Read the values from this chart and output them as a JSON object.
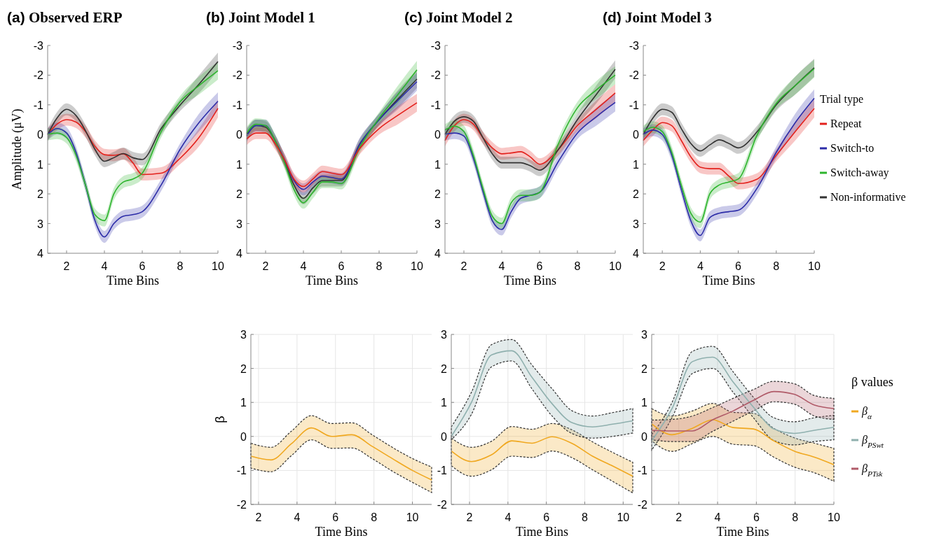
{
  "chart_data": [
    {
      "type": "line",
      "title": "(a) Observed ERP",
      "xlabel": "Time Bins",
      "ylabel": "Amplitude (μV)",
      "x": [
        1,
        1.5,
        2,
        2.5,
        3,
        3.5,
        4,
        4.5,
        5,
        5.5,
        6,
        7,
        8,
        9,
        10
      ],
      "xlim": [
        1,
        10
      ],
      "ylim": [
        4,
        -3
      ],
      "xticks": [
        2,
        4,
        6,
        8,
        10
      ],
      "yticks": [
        -3,
        -2,
        -1,
        0,
        1,
        2,
        3,
        4
      ],
      "grid": false,
      "legend": false,
      "series": [
        {
          "color": "#e3211c",
          "values": [
            0,
            -0.35,
            -0.5,
            -0.42,
            -0.1,
            0.4,
            0.68,
            0.7,
            0.65,
            0.95,
            1.35,
            1.3,
            0.8,
            0.1,
            -0.88
          ],
          "lower": [
            -0.2,
            -0.55,
            -0.7,
            -0.62,
            -0.3,
            0.2,
            0.48,
            0.5,
            0.45,
            0.75,
            1.15,
            1.1,
            0.6,
            -0.2,
            -1.18
          ],
          "upper": [
            0.2,
            -0.15,
            -0.3,
            -0.22,
            0.1,
            0.6,
            0.88,
            0.9,
            0.85,
            1.15,
            1.55,
            1.5,
            1.0,
            0.4,
            -0.58
          ]
        },
        {
          "color": "#333333",
          "values": [
            0,
            -0.56,
            -0.85,
            -0.64,
            -0.13,
            0.5,
            0.9,
            0.78,
            0.64,
            0.78,
            0.84,
            -0.2,
            -0.99,
            -1.7,
            -2.46
          ],
          "lower": [
            -0.2,
            -0.76,
            -1.05,
            -0.84,
            -0.33,
            0.3,
            0.7,
            0.58,
            0.44,
            0.58,
            0.64,
            -0.4,
            -1.19,
            -2.0,
            -2.76
          ],
          "upper": [
            0.2,
            -0.36,
            -0.65,
            -0.44,
            0.07,
            0.7,
            1.1,
            0.98,
            0.84,
            0.98,
            1.04,
            0,
            -0.79,
            -1.4,
            -2.16
          ]
        },
        {
          "color": "#2c2ca8",
          "values": [
            0,
            -0.2,
            -0.05,
            0.6,
            1.7,
            2.9,
            3.45,
            3.0,
            2.75,
            2.7,
            2.6,
            1.7,
            0.5,
            -0.4,
            -1.12
          ],
          "lower": [
            -0.2,
            -0.4,
            -0.25,
            0.4,
            1.5,
            2.7,
            3.25,
            2.8,
            2.55,
            2.5,
            2.4,
            1.5,
            0.3,
            -0.7,
            -1.42
          ],
          "upper": [
            0.2,
            0,
            0.15,
            0.8,
            1.9,
            3.1,
            3.65,
            3.2,
            2.95,
            2.9,
            2.8,
            1.9,
            0.7,
            -0.1,
            -0.82
          ]
        },
        {
          "color": "#2db52d",
          "values": [
            0,
            -0.05,
            0.1,
            0.7,
            1.7,
            2.7,
            2.9,
            2.0,
            1.6,
            1.5,
            1.3,
            -0.1,
            -1.1,
            -1.65,
            -2.15
          ],
          "lower": [
            -0.2,
            -0.25,
            -0.1,
            0.5,
            1.5,
            2.5,
            2.7,
            1.8,
            1.4,
            1.3,
            1.1,
            -0.3,
            -1.3,
            -1.95,
            -2.45
          ],
          "upper": [
            0.2,
            0.15,
            0.3,
            0.9,
            1.9,
            2.9,
            3.1,
            2.2,
            1.8,
            1.7,
            1.5,
            0.1,
            -0.9,
            -1.35,
            -1.85
          ]
        }
      ]
    },
    {
      "type": "line",
      "title": "(b) Joint Model 1",
      "xlabel": "Time Bins",
      "x": [
        1,
        1.5,
        2,
        2.5,
        3,
        3.5,
        4,
        4.5,
        5,
        5.5,
        6,
        7,
        8,
        9,
        10
      ],
      "xlim": [
        1,
        10
      ],
      "ylim": [
        4,
        -3
      ],
      "xticks": [
        2,
        4,
        6,
        8,
        10
      ],
      "yticks": [
        -3,
        -2,
        -1,
        0,
        1,
        2,
        3,
        4
      ],
      "grid": false,
      "legend": false,
      "series": [
        {
          "color": "#333333",
          "values": [
            0,
            -0.3,
            -0.25,
            0.2,
            0.9,
            1.7,
            2.15,
            1.8,
            1.55,
            1.55,
            1.55,
            0.3,
            -0.5,
            -1.2,
            -1.87
          ],
          "lower": [
            -0.2,
            -0.5,
            -0.45,
            0,
            0.7,
            1.5,
            1.95,
            1.6,
            1.35,
            1.35,
            1.35,
            0.1,
            -0.7,
            -1.5,
            -2.17
          ],
          "upper": [
            0.2,
            -0.1,
            -0.05,
            0.4,
            1.1,
            1.9,
            2.35,
            2.0,
            1.75,
            1.75,
            1.75,
            0.5,
            -0.3,
            -0.9,
            -1.57
          ]
        },
        {
          "color": "#2c2ca8",
          "values": [
            0.05,
            -0.3,
            -0.3,
            0.2,
            0.85,
            1.55,
            1.85,
            1.6,
            1.4,
            1.45,
            1.5,
            0.3,
            -0.5,
            -1.15,
            -1.78
          ],
          "lower": [
            -0.15,
            -0.5,
            -0.5,
            0,
            0.65,
            1.35,
            1.65,
            1.4,
            1.2,
            1.25,
            1.3,
            0.1,
            -0.7,
            -1.45,
            -2.08
          ],
          "upper": [
            0.25,
            -0.1,
            -0.1,
            0.4,
            1.05,
            1.75,
            2.05,
            1.8,
            1.6,
            1.65,
            1.7,
            0.5,
            -0.3,
            -0.85,
            -1.48
          ]
        },
        {
          "color": "#2db52d",
          "values": [
            -0.05,
            -0.35,
            -0.3,
            0.2,
            0.95,
            1.85,
            2.3,
            1.95,
            1.6,
            1.6,
            1.65,
            0.4,
            -0.55,
            -1.35,
            -2.18
          ],
          "lower": [
            -0.25,
            -0.55,
            -0.5,
            0,
            0.75,
            1.65,
            2.1,
            1.75,
            1.4,
            1.4,
            1.45,
            0.2,
            -0.75,
            -1.65,
            -2.48
          ],
          "upper": [
            0.15,
            -0.15,
            -0.1,
            0.4,
            1.15,
            2.05,
            2.5,
            2.15,
            1.8,
            1.8,
            1.85,
            0.6,
            -0.35,
            -1.05,
            -1.88
          ]
        },
        {
          "color": "#e3211c",
          "values": [
            0.15,
            -0.05,
            -0.05,
            0.3,
            0.85,
            1.5,
            1.75,
            1.5,
            1.25,
            1.3,
            1.35,
            0.45,
            -0.2,
            -0.65,
            -1.07
          ],
          "lower": [
            -0.05,
            -0.25,
            -0.25,
            0.1,
            0.65,
            1.3,
            1.55,
            1.3,
            1.05,
            1.1,
            1.15,
            0.25,
            -0.4,
            -0.95,
            -1.37
          ],
          "upper": [
            0.35,
            0.15,
            0.15,
            0.5,
            1.05,
            1.7,
            1.95,
            1.7,
            1.45,
            1.5,
            1.55,
            0.65,
            0,
            -0.35,
            -0.77
          ]
        }
      ]
    },
    {
      "type": "line",
      "title": "(c) Joint Model 2",
      "xlabel": "Time Bins",
      "x": [
        1,
        1.5,
        2,
        2.5,
        3,
        3.5,
        4,
        4.5,
        5,
        5.5,
        6,
        7,
        8,
        9,
        10
      ],
      "xlim": [
        1,
        10
      ],
      "ylim": [
        4,
        -3
      ],
      "xticks": [
        2,
        4,
        6,
        8,
        10
      ],
      "yticks": [
        -3,
        -2,
        -1,
        0,
        1,
        2,
        3,
        4
      ],
      "grid": false,
      "legend": false,
      "series": [
        {
          "color": "#e3211c",
          "values": [
            0.2,
            -0.3,
            -0.5,
            -0.35,
            0.1,
            0.45,
            0.65,
            0.62,
            0.58,
            0.75,
            1.0,
            0.5,
            -0.3,
            -0.85,
            -1.4
          ],
          "lower": [
            0,
            -0.5,
            -0.7,
            -0.55,
            -0.1,
            0.25,
            0.45,
            0.42,
            0.38,
            0.55,
            0.8,
            0.3,
            -0.5,
            -1.15,
            -1.7
          ],
          "upper": [
            0.4,
            -0.1,
            -0.3,
            -0.15,
            0.3,
            0.65,
            0.85,
            0.82,
            0.78,
            0.95,
            1.2,
            0.7,
            -0.1,
            -0.55,
            -1.1
          ]
        },
        {
          "color": "#333333",
          "values": [
            0,
            -0.45,
            -0.6,
            -0.45,
            0.1,
            0.65,
            0.95,
            0.95,
            0.95,
            1.05,
            1.2,
            0.5,
            -0.5,
            -1.35,
            -2.2
          ],
          "lower": [
            -0.2,
            -0.65,
            -0.8,
            -0.65,
            -0.1,
            0.45,
            0.75,
            0.75,
            0.75,
            0.85,
            1.0,
            0.3,
            -0.7,
            -1.65,
            -2.5
          ],
          "upper": [
            0.2,
            -0.25,
            -0.4,
            -0.25,
            0.3,
            0.85,
            1.15,
            1.15,
            1.15,
            1.25,
            1.4,
            0.7,
            -0.3,
            -1.05,
            -1.9
          ]
        },
        {
          "color": "#2c2ca8",
          "values": [
            0,
            -0.05,
            0.05,
            0.8,
            1.9,
            2.9,
            3.2,
            2.6,
            2.15,
            2.05,
            1.95,
            0.9,
            -0.05,
            -0.6,
            -1.08
          ],
          "lower": [
            -0.2,
            -0.25,
            -0.15,
            0.6,
            1.7,
            2.7,
            3.0,
            2.4,
            1.95,
            1.85,
            1.75,
            0.7,
            -0.25,
            -0.9,
            -1.38
          ],
          "upper": [
            0.2,
            0.15,
            0.25,
            1.0,
            2.1,
            3.1,
            3.4,
            2.8,
            2.35,
            2.25,
            2.15,
            1.1,
            0.15,
            -0.3,
            -0.78
          ]
        },
        {
          "color": "#2db52d",
          "values": [
            -0.15,
            -0.28,
            -0.1,
            0.7,
            1.8,
            2.75,
            3.0,
            2.3,
            2.05,
            2.05,
            1.95,
            0.3,
            -0.9,
            -1.5,
            -2.0
          ],
          "lower": [
            -0.35,
            -0.48,
            -0.3,
            0.5,
            1.6,
            2.55,
            2.8,
            2.1,
            1.85,
            1.85,
            1.75,
            0.1,
            -1.1,
            -1.8,
            -2.3
          ],
          "upper": [
            0.05,
            -0.08,
            0.1,
            0.9,
            2.0,
            2.95,
            3.2,
            2.5,
            2.25,
            2.25,
            2.15,
            0.5,
            -0.7,
            -1.2,
            -1.7
          ]
        }
      ]
    },
    {
      "type": "line",
      "title": "(d) Joint Model 3",
      "xlabel": "Time Bins",
      "x": [
        1,
        1.5,
        2,
        2.5,
        3,
        3.5,
        4,
        4.5,
        5,
        5.5,
        6,
        7,
        8,
        9,
        10
      ],
      "xlim": [
        1,
        10
      ],
      "ylim": [
        4,
        -3
      ],
      "xticks": [
        2,
        4,
        6,
        8,
        10
      ],
      "yticks": [
        -3,
        -2,
        -1,
        0,
        1,
        2,
        3,
        4
      ],
      "grid": false,
      "legend": "right",
      "legend_title": "Trial type",
      "series": [
        {
          "name": "Non-informative",
          "color": "#333333",
          "values": [
            0,
            -0.55,
            -0.85,
            -0.75,
            -0.2,
            0.3,
            0.55,
            0.35,
            0.18,
            0.3,
            0.45,
            -0.1,
            -1.0,
            -1.65,
            -2.25
          ],
          "lower": [
            -0.2,
            -0.75,
            -1.05,
            -0.95,
            -0.4,
            0.1,
            0.35,
            0.15,
            -0.02,
            0.1,
            0.25,
            -0.3,
            -1.2,
            -1.95,
            -2.55
          ],
          "upper": [
            0.2,
            -0.35,
            -0.65,
            -0.55,
            0,
            0.5,
            0.75,
            0.55,
            0.38,
            0.5,
            0.65,
            0.1,
            -0.8,
            -1.35,
            -1.95
          ]
        },
        {
          "name": "Repeat",
          "color": "#e3211c",
          "values": [
            0.2,
            -0.15,
            -0.4,
            -0.3,
            0.2,
            0.75,
            1.1,
            1.15,
            1.15,
            1.4,
            1.65,
            1.5,
            0.7,
            -0.1,
            -0.88
          ],
          "lower": [
            0,
            -0.35,
            -0.6,
            -0.5,
            0,
            0.55,
            0.9,
            0.95,
            0.95,
            1.2,
            1.45,
            1.3,
            0.5,
            -0.4,
            -1.18
          ],
          "upper": [
            0.4,
            0.05,
            -0.2,
            -0.1,
            0.4,
            0.95,
            1.3,
            1.35,
            1.35,
            1.6,
            1.85,
            1.7,
            0.9,
            0.2,
            -0.58
          ]
        },
        {
          "name": "Switch-to",
          "color": "#2c2ca8",
          "values": [
            0,
            -0.15,
            0,
            0.7,
            1.85,
            2.9,
            3.4,
            2.8,
            2.65,
            2.6,
            2.55,
            1.8,
            0.6,
            -0.4,
            -1.22
          ],
          "lower": [
            -0.2,
            -0.35,
            -0.2,
            0.5,
            1.65,
            2.7,
            3.2,
            2.6,
            2.45,
            2.4,
            2.35,
            1.6,
            0.4,
            -0.7,
            -1.52
          ],
          "upper": [
            0.2,
            0.05,
            0.2,
            0.9,
            2.05,
            3.1,
            3.6,
            3.0,
            2.85,
            2.8,
            2.75,
            2.0,
            0.8,
            -0.1,
            -0.92
          ]
        },
        {
          "name": "Switch-away",
          "color": "#2db52d",
          "values": [
            -0.1,
            -0.25,
            -0.1,
            0.6,
            1.7,
            2.65,
            2.95,
            2.0,
            1.7,
            1.6,
            1.5,
            0,
            -1.05,
            -1.65,
            -2.22
          ],
          "lower": [
            -0.3,
            -0.45,
            -0.3,
            0.4,
            1.5,
            2.45,
            2.75,
            1.8,
            1.5,
            1.4,
            1.3,
            -0.2,
            -1.25,
            -1.95,
            -2.52
          ],
          "upper": [
            0.1,
            -0.05,
            0.1,
            0.8,
            1.9,
            2.85,
            3.15,
            2.2,
            1.9,
            1.8,
            1.7,
            0.2,
            -0.85,
            -1.35,
            -1.92
          ]
        }
      ]
    },
    {
      "type": "line",
      "xlabel": "Time Bins",
      "ylabel": "β",
      "x": [
        1.6,
        2.65,
        3.7,
        4.75,
        5.8,
        6.85,
        7.9,
        8.95,
        10,
        11
      ],
      "xlim": [
        1.6,
        11
      ],
      "ylim": [
        -2,
        3
      ],
      "xticks": [
        2,
        4,
        6,
        8,
        10
      ],
      "yticks": [
        -2,
        -1,
        0,
        1,
        2,
        3
      ],
      "grid": true,
      "legend": false,
      "series": [
        {
          "color": "#f0a820",
          "values": [
            -0.58,
            -0.69,
            -0.22,
            0.25,
            0,
            0.05,
            -0.29,
            -0.65,
            -1.0,
            -1.28
          ],
          "lower": [
            -0.93,
            -1.04,
            -0.57,
            -0.1,
            -0.35,
            -0.34,
            -0.65,
            -1.02,
            -1.35,
            -1.65
          ],
          "upper": [
            -0.2,
            -0.32,
            0.15,
            0.61,
            0.38,
            0.4,
            0.05,
            -0.32,
            -0.65,
            -0.9
          ]
        }
      ]
    },
    {
      "type": "line",
      "xlabel": "Time Bins",
      "x": [
        1.05,
        2.1,
        3.15,
        4.2,
        5.25,
        6.3,
        7.35,
        8.4,
        9.45,
        10.5
      ],
      "xlim": [
        1.05,
        10.5
      ],
      "ylim": [
        -2,
        3
      ],
      "xticks": [
        2,
        4,
        6,
        8,
        10
      ],
      "yticks": [
        -2,
        -1,
        0,
        1,
        2,
        3
      ],
      "grid": true,
      "legend": false,
      "series": [
        {
          "color": "#f0a820",
          "values": [
            -0.43,
            -0.74,
            -0.54,
            -0.13,
            -0.2,
            -0.01,
            -0.21,
            -0.58,
            -0.87,
            -1.17
          ],
          "lower": [
            -0.86,
            -1.17,
            -0.98,
            -0.58,
            -0.62,
            -0.43,
            -0.63,
            -0.98,
            -1.32,
            -1.66
          ],
          "upper": [
            -0.05,
            -0.32,
            -0.14,
            0.29,
            0.21,
            0.38,
            0.19,
            -0.16,
            -0.47,
            -0.76
          ]
        },
        {
          "color": "#8fb0ae",
          "values": [
            0,
            1.0,
            2.4,
            2.52,
            1.74,
            0.96,
            0.4,
            0.28,
            0.36,
            0.46
          ],
          "lower": [
            -0.1,
            0.65,
            2.05,
            2.22,
            1.4,
            0.6,
            0.08,
            -0.05,
            0,
            0.1
          ],
          "upper": [
            0.28,
            1.3,
            2.7,
            2.85,
            2.1,
            1.4,
            0.75,
            0.6,
            0.7,
            0.82
          ]
        }
      ]
    },
    {
      "type": "line",
      "xlabel": "Time Bins",
      "x": [
        0.6,
        1.65,
        2.7,
        3.75,
        4.8,
        5.85,
        6.9,
        7.95,
        9.0,
        10
      ],
      "xlim": [
        0.6,
        10
      ],
      "ylim": [
        -2,
        3
      ],
      "xticks": [
        2,
        4,
        6,
        8,
        10
      ],
      "yticks": [
        -2,
        -1,
        0,
        1,
        2,
        3
      ],
      "grid": true,
      "legend": "right",
      "legend_title": "β values",
      "series": [
        {
          "name": "β$_{α}$",
          "color": "#f0a820",
          "values": [
            0.37,
            0.05,
            0.24,
            0.49,
            0.26,
            0.22,
            -0.13,
            -0.43,
            -0.61,
            -0.83
          ],
          "lower": [
            -0.13,
            -0.44,
            -0.21,
            0,
            -0.23,
            -0.27,
            -0.61,
            -0.9,
            -1.07,
            -1.32
          ],
          "upper": [
            0.82,
            0.6,
            0.75,
            0.97,
            0.71,
            0.68,
            0.24,
            -0.04,
            -0.2,
            -0.35
          ]
        },
        {
          "name": "β$_{PSwt}$",
          "color": "#8fb0ae",
          "values": [
            -0.13,
            0.82,
            2.2,
            2.33,
            1.6,
            0.86,
            0.22,
            0.09,
            0.18,
            0.27
          ],
          "lower": [
            -0.4,
            0.55,
            1.85,
            2.0,
            1.3,
            0.55,
            -0.12,
            -0.25,
            -0.15,
            -0.1
          ],
          "upper": [
            0.05,
            1.0,
            2.5,
            2.65,
            1.9,
            1.15,
            0.55,
            0.43,
            0.55,
            0.62
          ]
        },
        {
          "name": "β$_{PTsk}$",
          "color": "#b05a68",
          "values": [
            0.18,
            0.16,
            0.16,
            0.49,
            0.75,
            1.06,
            1.32,
            1.24,
            0.92,
            0.82
          ],
          "lower": [
            -0.1,
            -0.15,
            -0.15,
            0.15,
            0.45,
            0.75,
            1.02,
            0.95,
            0.6,
            0.5
          ],
          "upper": [
            0.48,
            0.5,
            0.6,
            0.85,
            1.12,
            1.38,
            1.62,
            1.55,
            1.2,
            1.12
          ]
        }
      ]
    }
  ]
}
